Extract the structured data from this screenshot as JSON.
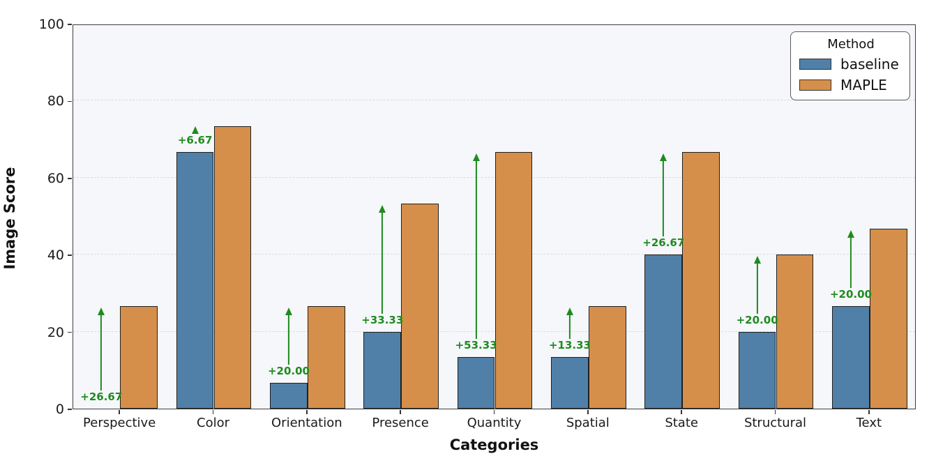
{
  "chart_data": {
    "type": "bar",
    "title": "",
    "xlabel": "Categories",
    "ylabel": "Image Score",
    "ylim": [
      0,
      100
    ],
    "yticks": [
      0,
      20,
      40,
      60,
      80,
      100
    ],
    "grid": true,
    "legend": {
      "title": "Method",
      "position": "upper-right"
    },
    "categories": [
      "Perspective",
      "Color",
      "Orientation",
      "Presence",
      "Quantity",
      "Spatial",
      "State",
      "Structural",
      "Text"
    ],
    "series": [
      {
        "name": "baseline",
        "color": "#5080a8",
        "values": [
          0,
          66.67,
          6.67,
          20.0,
          13.33,
          13.33,
          40.0,
          20.0,
          26.67
        ]
      },
      {
        "name": "MAPLE",
        "color": "#d68f4a",
        "values": [
          26.67,
          73.33,
          26.67,
          53.33,
          66.67,
          26.67,
          66.67,
          40.0,
          46.67
        ]
      }
    ],
    "annotations": {
      "color": "#1f8b1f",
      "labels": [
        "+26.67",
        "+6.67",
        "+20.00",
        "+33.33",
        "+53.33",
        "+13.33",
        "+26.67",
        "+20.00",
        "+20.00"
      ]
    },
    "colors": {
      "bar_edge": "#1f1f1f",
      "plot_background": "#f5f7fa",
      "grid": "#d8dbe0",
      "spine": "#3d3d3d"
    }
  }
}
